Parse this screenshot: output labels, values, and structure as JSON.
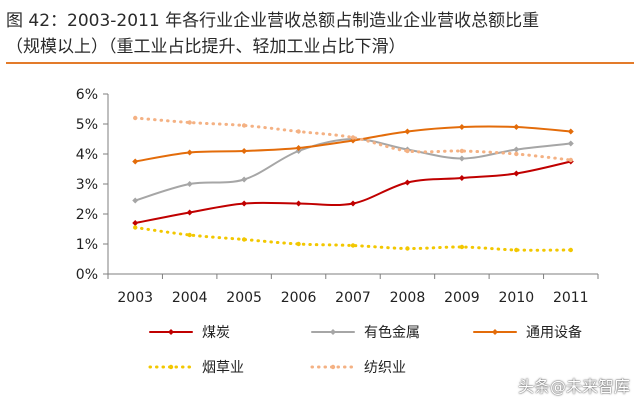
{
  "header": {
    "title_line1": "图 42：2003-2011 年各行业企业营收总额占制造业企业营收总额比重",
    "title_line2": "（规模以上）（重工业占比提升、轻加工业占比下滑）"
  },
  "colors": {
    "title_rule": "#e37b2a",
    "axis": "#7f7f7f"
  },
  "watermark": "头条@未来智库",
  "chart_data": {
    "type": "line",
    "categories": [
      "2003",
      "2004",
      "2005",
      "2006",
      "2007",
      "2008",
      "2009",
      "2010",
      "2011"
    ],
    "ylim": [
      0,
      6
    ],
    "y_ticks": [
      "0%",
      "1%",
      "2%",
      "3%",
      "4%",
      "5%",
      "6%"
    ],
    "grid": false,
    "legend_position": "bottom",
    "series": [
      {
        "name": "煤炭",
        "color": "#c00000",
        "style": "solid",
        "marker": "diamond",
        "values": [
          1.7,
          2.05,
          2.35,
          2.35,
          2.35,
          3.05,
          3.2,
          3.35,
          3.75
        ]
      },
      {
        "name": "有色金属",
        "color": "#a6a6a6",
        "style": "solid",
        "marker": "diamond",
        "values": [
          2.45,
          3.0,
          3.15,
          4.1,
          4.5,
          4.15,
          3.85,
          4.15,
          4.35
        ]
      },
      {
        "name": "通用设备",
        "color": "#e36c0a",
        "style": "solid",
        "marker": "diamond",
        "values": [
          3.75,
          4.05,
          4.1,
          4.2,
          4.45,
          4.75,
          4.9,
          4.9,
          4.75
        ]
      },
      {
        "name": "烟草业",
        "color": "#f2c700",
        "style": "dotted",
        "marker": "dot",
        "values": [
          1.55,
          1.3,
          1.15,
          1.0,
          0.95,
          0.85,
          0.9,
          0.8,
          0.8
        ]
      },
      {
        "name": "纺织业",
        "color": "#f4b183",
        "style": "dotted",
        "marker": "dot",
        "values": [
          5.2,
          5.05,
          4.95,
          4.75,
          4.55,
          4.1,
          4.1,
          4.0,
          3.8
        ]
      }
    ]
  }
}
